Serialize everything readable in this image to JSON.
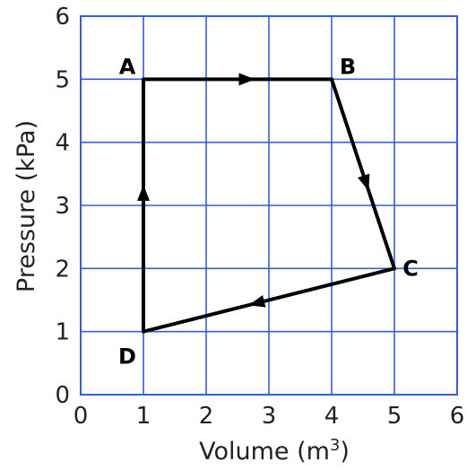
{
  "chart_data": {
    "type": "line",
    "title": "",
    "xlabel": "Volume (m",
    "xlabel_superscript": "3",
    "xlabel_suffix": ")",
    "ylabel": "Pressure (kPa)",
    "xlim": [
      0,
      6
    ],
    "ylim": [
      0,
      6
    ],
    "x_ticks": [
      0,
      1,
      2,
      3,
      4,
      5,
      6
    ],
    "y_ticks": [
      0,
      1,
      2,
      3,
      4,
      5,
      6
    ],
    "grid": true,
    "grid_color": "#3a5bd9",
    "line_color": "#000000",
    "points": [
      {
        "label": "A",
        "x": 1,
        "y": 5
      },
      {
        "label": "B",
        "x": 4,
        "y": 5
      },
      {
        "label": "C",
        "x": 5,
        "y": 2
      },
      {
        "label": "D",
        "x": 1,
        "y": 1
      }
    ],
    "path_order": [
      "A",
      "B",
      "C",
      "D",
      "A"
    ],
    "direction_arrows": true
  }
}
